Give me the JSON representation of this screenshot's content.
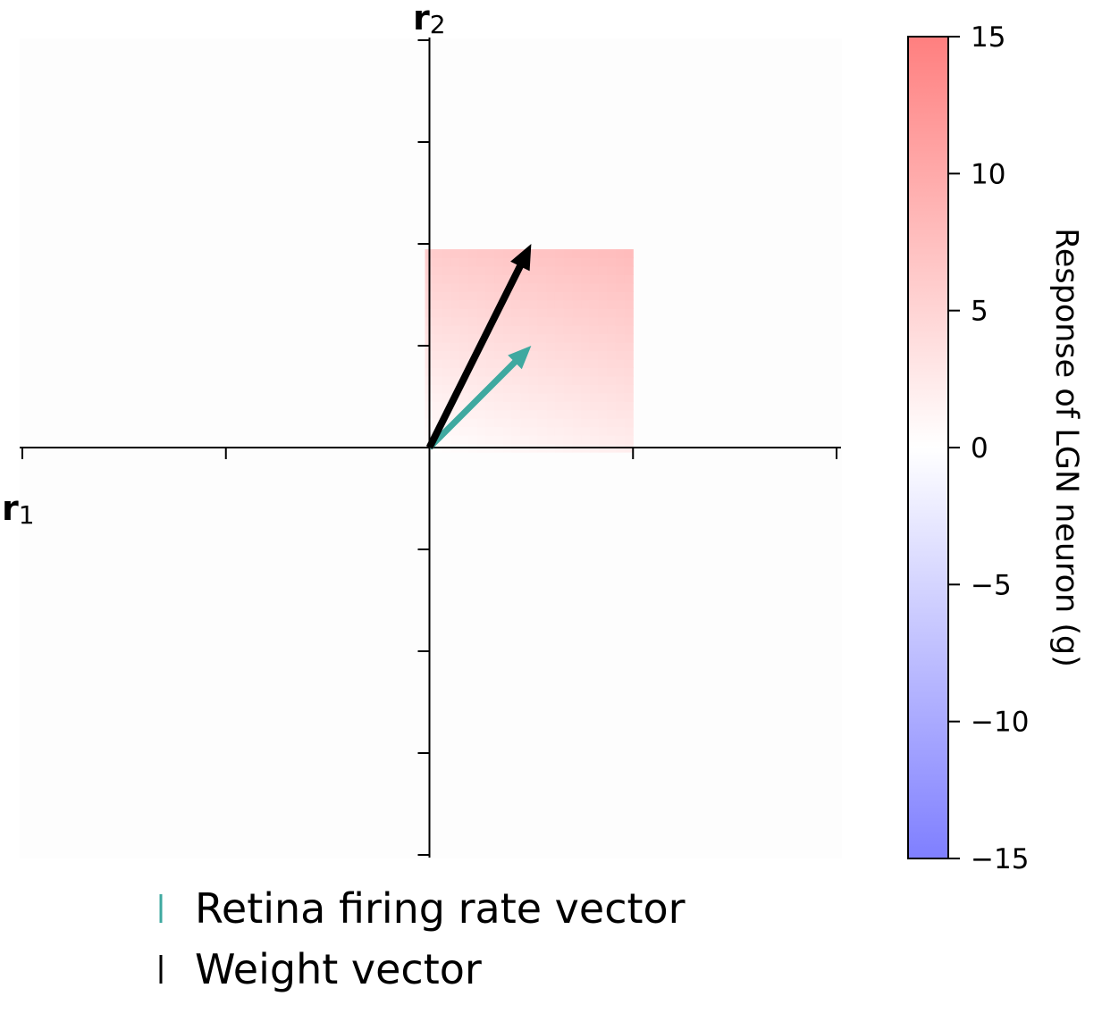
{
  "chart_data": {
    "type": "heatmap",
    "x_axis": {
      "label_main": "r",
      "label_sub": "1",
      "range": [
        -2,
        2
      ],
      "ticks": [
        -2,
        -1,
        0,
        1,
        2
      ]
    },
    "y_axis": {
      "label_main": "r",
      "label_sub": "2",
      "range": [
        -2,
        2
      ],
      "ticks": [
        -2,
        -1.5,
        -1,
        -0.5,
        0,
        0.5,
        1,
        1.5,
        2
      ]
    },
    "heatmap": {
      "region": {
        "x": [
          0,
          1
        ],
        "y": [
          0,
          1
        ]
      },
      "description_values": {
        "value_at_origin": 0,
        "value_at_top_right": 8
      },
      "outside_value": 0
    },
    "vectors": [
      {
        "name": "Retina firing rate vector",
        "x": 0.5,
        "y": 0.5,
        "color": "#3fa9a0"
      },
      {
        "name": "Weight vector",
        "x": 0.5,
        "y": 1.0,
        "color": "#000000"
      }
    ],
    "colorbar": {
      "label": "Response of LGN neuron (g)",
      "range": [
        -15,
        15
      ],
      "ticks": [
        15,
        10,
        5,
        0,
        -5,
        -10,
        -15
      ],
      "tick_labels": [
        "15",
        "10",
        "5",
        "0",
        "−5",
        "−10",
        "−15"
      ],
      "colormap": "bwr",
      "low_color": "#7f7fff",
      "mid_color": "#ffffff",
      "high_color": "#ff7f7f"
    },
    "legend": {
      "placement": "bottom-left",
      "items": [
        {
          "label": "Retina firing rate vector",
          "color": "#3fa9a0"
        },
        {
          "label": "Weight vector",
          "color": "#000000"
        }
      ]
    },
    "grid": false
  }
}
